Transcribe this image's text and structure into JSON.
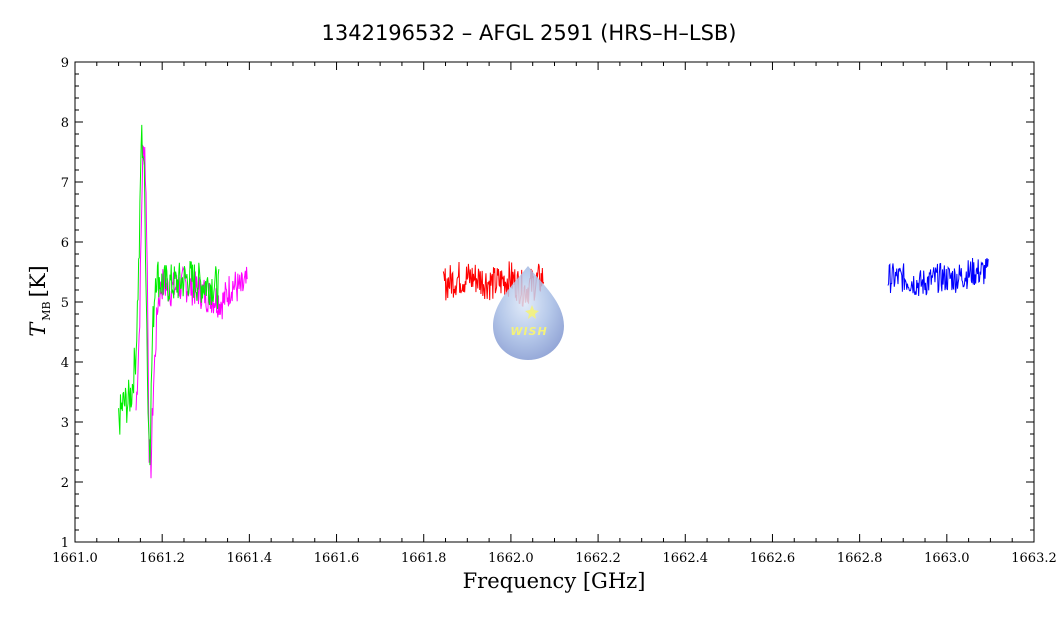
{
  "chart_data": {
    "type": "line",
    "title": "1342196532 – AFGL 2591 (HRS–H–LSB)",
    "xlabel": "Frequency [GHz]",
    "ylabel_main": "T",
    "ylabel_sub": "MB",
    "ylabel_unit": "[K]",
    "xlim": [
      1661.0,
      1663.2
    ],
    "ylim": [
      1,
      9
    ],
    "x_ticks": [
      "1661.0",
      "1661.2",
      "1661.4",
      "1661.6",
      "1661.8",
      "1662.0",
      "1662.2",
      "1662.4",
      "1662.6",
      "1662.8",
      "1663.0",
      "1663.2"
    ],
    "y_ticks": [
      "1",
      "2",
      "3",
      "4",
      "5",
      "6",
      "7",
      "8",
      "9"
    ],
    "grid": false,
    "series": [
      {
        "color": "#ff00ff",
        "points": [
          [
            1661.14,
            3.2
          ],
          [
            1661.148,
            4.6
          ],
          [
            1661.155,
            7.4
          ],
          [
            1661.16,
            7.6
          ],
          [
            1661.165,
            6.1
          ],
          [
            1661.17,
            2.6
          ],
          [
            1661.174,
            2.2
          ],
          [
            1661.18,
            3.6
          ],
          [
            1661.19,
            5.0
          ],
          [
            1661.2,
            5.3
          ],
          [
            1661.22,
            5.2
          ],
          [
            1661.25,
            5.3
          ],
          [
            1661.28,
            5.2
          ],
          [
            1661.31,
            5.1
          ],
          [
            1661.34,
            5.0
          ],
          [
            1661.36,
            5.3
          ],
          [
            1661.38,
            5.2
          ],
          [
            1661.395,
            5.3
          ]
        ],
        "noise": 0.3
      },
      {
        "color": "#00ee00",
        "points": [
          [
            1661.1,
            3.0
          ],
          [
            1661.11,
            3.3
          ],
          [
            1661.12,
            3.3
          ],
          [
            1661.13,
            3.5
          ],
          [
            1661.14,
            4.2
          ],
          [
            1661.148,
            6.0
          ],
          [
            1661.152,
            7.8
          ],
          [
            1661.158,
            7.4
          ],
          [
            1661.163,
            5.5
          ],
          [
            1661.168,
            3.0
          ],
          [
            1661.172,
            2.6
          ],
          [
            1661.178,
            4.5
          ],
          [
            1661.185,
            5.5
          ],
          [
            1661.2,
            5.3
          ],
          [
            1661.23,
            5.3
          ],
          [
            1661.26,
            5.4
          ],
          [
            1661.29,
            5.3
          ],
          [
            1661.32,
            5.3
          ],
          [
            1661.33,
            5.2
          ]
        ],
        "noise": 0.35
      },
      {
        "color": "#ff0000",
        "points": [
          [
            1661.845,
            5.3
          ],
          [
            1661.88,
            5.4
          ],
          [
            1661.92,
            5.4
          ],
          [
            1661.96,
            5.3
          ],
          [
            1662.0,
            5.4
          ],
          [
            1662.03,
            5.2
          ],
          [
            1662.05,
            5.3
          ],
          [
            1662.075,
            5.4
          ]
        ],
        "noise": 0.3
      },
      {
        "color": "#0000ff",
        "points": [
          [
            1662.865,
            5.4
          ],
          [
            1662.9,
            5.4
          ],
          [
            1662.94,
            5.3
          ],
          [
            1662.98,
            5.4
          ],
          [
            1663.02,
            5.4
          ],
          [
            1663.06,
            5.5
          ],
          [
            1663.095,
            5.5
          ]
        ],
        "noise": 0.25
      }
    ]
  },
  "logo": {
    "text": "WISH"
  }
}
